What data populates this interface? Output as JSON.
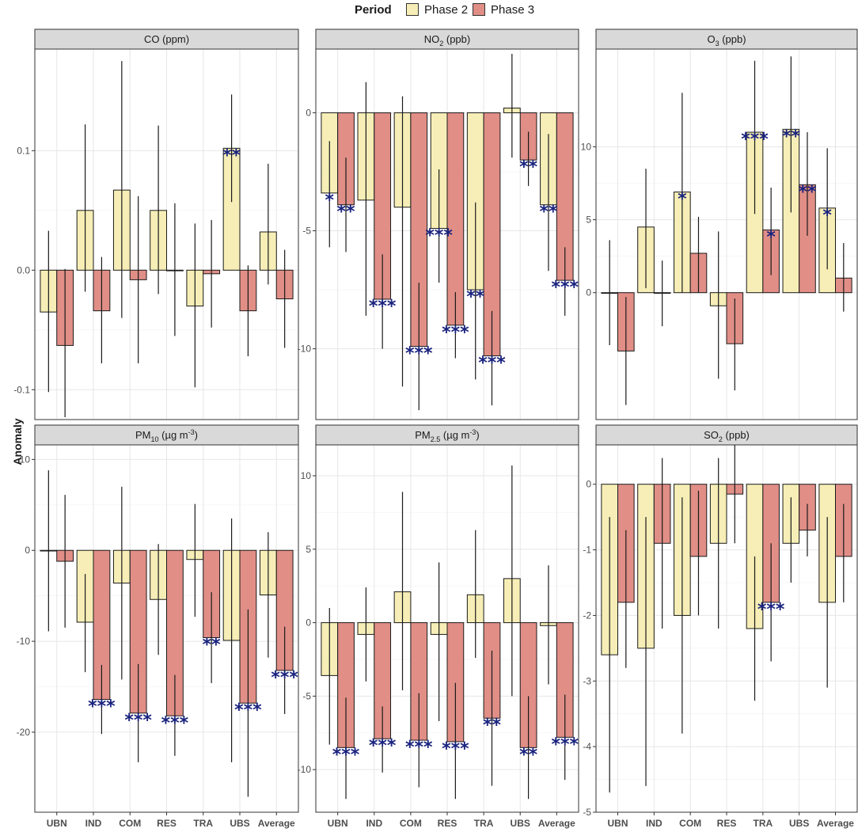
{
  "legend": {
    "title": "Period",
    "items": [
      {
        "label": "Phase 2",
        "color": "#f6eeb6"
      },
      {
        "label": "Phase 3",
        "color": "#e08e86"
      }
    ]
  },
  "y_title": "Anomaly",
  "colors": {
    "phase2": "#f6eeb6",
    "phase3": "#e08e86",
    "stars": "#1a237e",
    "strip": "#d9d9d9"
  },
  "chart_data": [
    {
      "type": "bar",
      "title": "CO (ppm)",
      "strip": {
        "pre": "CO",
        "sub": "",
        "sup": "",
        "post": " (ppm)"
      },
      "categories": [
        "UBN",
        "IND",
        "COM",
        "RES",
        "TRA",
        "UBS",
        "Average"
      ],
      "ylim": [
        -0.125,
        0.185
      ],
      "yticks": [
        -0.1,
        0.0,
        0.1
      ],
      "yticklabels": [
        "-0.1",
        "0.0",
        "0.1"
      ],
      "series": [
        {
          "name": "Phase 2",
          "values": [
            -0.035,
            0.05,
            0.067,
            0.05,
            -0.03,
            0.102,
            0.032
          ],
          "err_low": [
            -0.102,
            -0.018,
            -0.04,
            -0.02,
            -0.098,
            0.057,
            -0.012
          ],
          "err_high": [
            0.033,
            0.122,
            0.175,
            0.121,
            0.039,
            0.147,
            0.089
          ],
          "stars": [
            "",
            "",
            "",
            "",
            "",
            "**",
            ""
          ]
        },
        {
          "name": "Phase 3",
          "values": [
            -0.063,
            -0.034,
            -0.008,
            0.0,
            -0.003,
            -0.034,
            -0.024
          ],
          "err_low": [
            -0.123,
            -0.078,
            -0.078,
            -0.055,
            -0.048,
            -0.072,
            -0.065
          ],
          "err_high": [
            0.001,
            0.011,
            0.062,
            0.056,
            0.042,
            0.004,
            0.017
          ],
          "stars": [
            "",
            "",
            "",
            "",
            "",
            "",
            ""
          ]
        }
      ]
    },
    {
      "type": "bar",
      "title": "NO2 (ppb)",
      "strip": {
        "pre": "NO",
        "sub": "2",
        "sup": "",
        "post": " (ppb)"
      },
      "categories": [
        "UBN",
        "IND",
        "COM",
        "RES",
        "TRA",
        "UBS",
        "Average"
      ],
      "ylim": [
        -13.0,
        2.7
      ],
      "yticks": [
        -10,
        -5,
        0
      ],
      "yticklabels": [
        "-10",
        "-5",
        "0"
      ],
      "series": [
        {
          "name": "Phase 2",
          "values": [
            -3.4,
            -3.7,
            -4.0,
            -4.9,
            -7.5,
            0.2,
            -3.9
          ],
          "err_low": [
            -5.7,
            -8.6,
            -11.6,
            -7.2,
            -11.3,
            -1.9,
            -6.7
          ],
          "err_high": [
            -1.2,
            1.3,
            0.7,
            -2.4,
            -3.8,
            2.5,
            -0.9
          ],
          "stars": [
            "*",
            "",
            "",
            "***",
            "**",
            "",
            "**"
          ]
        },
        {
          "name": "Phase 3",
          "values": [
            -3.9,
            -7.9,
            -9.9,
            -9.0,
            -10.3,
            -2.0,
            -7.1
          ],
          "err_low": [
            -5.9,
            -10.0,
            -12.6,
            -10.4,
            -12.4,
            -3.1,
            -8.6
          ],
          "err_high": [
            -1.9,
            -6.0,
            -7.2,
            -7.6,
            -8.4,
            -0.8,
            -5.7
          ],
          "stars": [
            "**",
            "***",
            "***",
            "***",
            "***",
            "**",
            "***"
          ]
        }
      ]
    },
    {
      "type": "bar",
      "title": "O3 (ppb)",
      "strip": {
        "pre": "O",
        "sub": "3",
        "sup": "",
        "post": " (ppb)"
      },
      "categories": [
        "UBN",
        "IND",
        "COM",
        "RES",
        "TRA",
        "UBS",
        "Average"
      ],
      "ylim": [
        -8.7,
        16.7
      ],
      "yticks": [
        0,
        5,
        10
      ],
      "yticklabels": [
        "0",
        "5",
        "10"
      ],
      "series": [
        {
          "name": "Phase 2",
          "values": [
            0.0,
            4.5,
            6.9,
            -0.9,
            11.0,
            11.2,
            5.8
          ],
          "err_low": [
            -3.6,
            0.3,
            0.0,
            -5.9,
            5.4,
            5.5,
            1.6
          ],
          "err_high": [
            3.6,
            8.5,
            13.7,
            4.2,
            15.9,
            16.2,
            9.9
          ],
          "stars": [
            "",
            "",
            "*",
            "",
            "***",
            "**",
            "*"
          ]
        },
        {
          "name": "Phase 3",
          "values": [
            -4.0,
            0.0,
            2.7,
            -3.5,
            4.3,
            7.4,
            1.0
          ],
          "err_low": [
            -7.7,
            -2.3,
            0.0,
            -6.7,
            1.2,
            3.9,
            -1.3
          ],
          "err_high": [
            -0.3,
            2.2,
            5.2,
            -0.4,
            7.2,
            11.0,
            3.4
          ],
          "stars": [
            "",
            "",
            "",
            "",
            "*",
            "**",
            ""
          ]
        }
      ]
    },
    {
      "type": "bar",
      "title": "PM10 (µg m-3)",
      "strip": {
        "pre": "PM",
        "sub": "10",
        "sup": "-3",
        "post": " (µg m"
      },
      "categories": [
        "UBN",
        "IND",
        "COM",
        "RES",
        "TRA",
        "UBS",
        "Average"
      ],
      "ylim": [
        -28.8,
        11.6
      ],
      "yticks": [
        -20,
        -10,
        0,
        10
      ],
      "yticklabels": [
        "-20",
        "-10",
        "0",
        "10"
      ],
      "series": [
        {
          "name": "Phase 2",
          "values": [
            0.0,
            -7.9,
            -3.6,
            -5.4,
            -1.0,
            -9.9,
            -4.9
          ],
          "err_low": [
            -8.9,
            -13.4,
            -14.2,
            -11.5,
            -7.3,
            -23.3,
            -11.8
          ],
          "err_high": [
            8.8,
            -2.6,
            7.0,
            0.7,
            5.1,
            3.5,
            2.0
          ],
          "stars": [
            "",
            "",
            "",
            "",
            "",
            "",
            ""
          ]
        },
        {
          "name": "Phase 3",
          "values": [
            -1.2,
            -16.4,
            -17.9,
            -18.2,
            -9.6,
            -16.8,
            -13.2
          ],
          "err_low": [
            -8.5,
            -20.2,
            -23.3,
            -22.6,
            -14.6,
            -27.1,
            -18.0
          ],
          "err_high": [
            6.1,
            -12.6,
            -12.5,
            -13.7,
            -4.6,
            -6.5,
            -8.4
          ],
          "stars": [
            "",
            "***",
            "***",
            "***",
            "**",
            "***",
            "***"
          ]
        }
      ]
    },
    {
      "type": "bar",
      "title": "PM2.5 (µg m-3)",
      "strip": {
        "pre": "PM",
        "sub": "2.5",
        "sup": "-3",
        "post": " (µg m"
      },
      "categories": [
        "UBN",
        "IND",
        "COM",
        "RES",
        "TRA",
        "UBS",
        "Average"
      ],
      "ylim": [
        -12.9,
        12.1
      ],
      "yticks": [
        -10,
        -5,
        0,
        5,
        10
      ],
      "yticklabels": [
        "-10",
        "-5",
        "0",
        "5",
        "10"
      ],
      "series": [
        {
          "name": "Phase 2",
          "values": [
            -3.6,
            -0.8,
            2.1,
            -0.8,
            1.9,
            3.0,
            -0.2
          ],
          "err_low": [
            -8.3,
            -4.0,
            -4.6,
            -6.7,
            -2.4,
            -5.0,
            -4.2
          ],
          "err_high": [
            1.0,
            2.4,
            8.9,
            4.1,
            6.3,
            10.7,
            3.9
          ],
          "stars": [
            "",
            "",
            "",
            "",
            "",
            "",
            ""
          ]
        },
        {
          "name": "Phase 3",
          "values": [
            -8.5,
            -7.9,
            -8.0,
            -8.1,
            -6.5,
            -8.5,
            -7.8
          ],
          "err_low": [
            -12.0,
            -10.2,
            -11.2,
            -12.0,
            -11.1,
            -12.0,
            -10.7
          ],
          "err_high": [
            -5.1,
            -5.7,
            -4.8,
            -4.1,
            -1.9,
            -5.0,
            -4.9
          ],
          "stars": [
            "***",
            "***",
            "***",
            "***",
            "**",
            "**",
            "***"
          ]
        }
      ]
    },
    {
      "type": "bar",
      "title": "SO2 (ppb)",
      "strip": {
        "pre": "SO",
        "sub": "2",
        "sup": "",
        "post": " (ppb)"
      },
      "categories": [
        "UBN",
        "IND",
        "COM",
        "RES",
        "TRA",
        "UBS",
        "Average"
      ],
      "ylim": [
        -5.0,
        0.6
      ],
      "yticks": [
        -5,
        -4,
        -3,
        -2,
        -1,
        0
      ],
      "yticklabels": [
        "-5",
        "-4",
        "-3",
        "-2",
        "-1",
        "0"
      ],
      "series": [
        {
          "name": "Phase 2",
          "values": [
            -2.6,
            -2.5,
            -2.0,
            -0.9,
            -2.2,
            -0.9,
            -1.8
          ],
          "err_low": [
            -4.7,
            -4.6,
            -3.8,
            -2.2,
            -3.3,
            -1.5,
            -3.1
          ],
          "err_high": [
            -0.5,
            -0.5,
            -0.2,
            0.4,
            -1.1,
            -0.2,
            -0.5
          ],
          "stars": [
            "",
            "",
            "",
            "",
            "",
            "",
            ""
          ]
        },
        {
          "name": "Phase 3",
          "values": [
            -1.8,
            -0.9,
            -1.1,
            -0.15,
            -1.8,
            -0.7,
            -1.1
          ],
          "err_low": [
            -2.8,
            -2.2,
            -2.0,
            -0.9,
            -2.7,
            -1.1,
            -1.8
          ],
          "err_high": [
            -0.7,
            0.4,
            -0.1,
            0.6,
            -0.9,
            -0.3,
            -0.3
          ],
          "stars": [
            "",
            "",
            "",
            "",
            "***",
            "",
            ""
          ]
        }
      ]
    }
  ]
}
